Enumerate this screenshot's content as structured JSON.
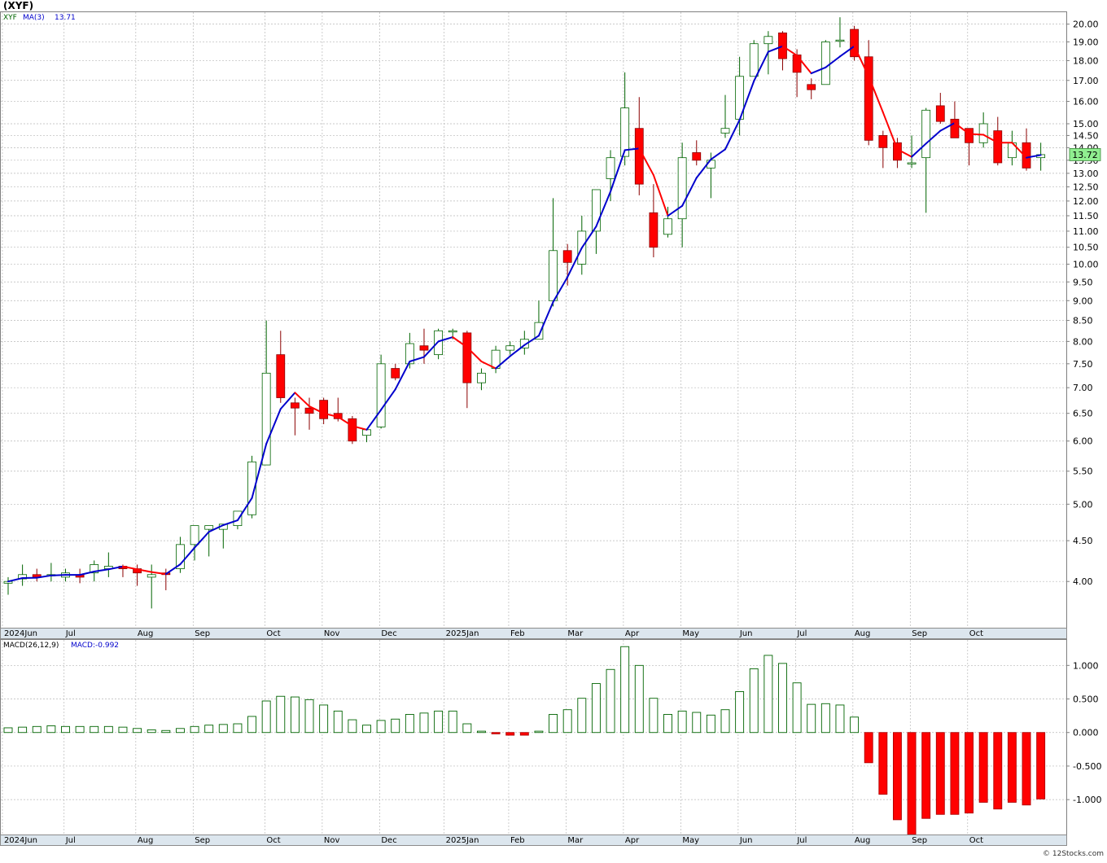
{
  "title": "(XYF)",
  "watermark": "© 12Stocks.com",
  "colors": {
    "up": "#ffffff",
    "up_border": "#006400",
    "down": "#ff0000",
    "down_border": "#8b0000",
    "ma_up": "#0000cc",
    "ma_down": "#ff0000",
    "hist_pos": "#006400",
    "hist_neg": "#ff0000",
    "price_label_bg": "#90ee90"
  },
  "chart_data": [
    {
      "type": "candlestick",
      "symbol": "XYF",
      "legend": {
        "symbol": "XYF",
        "ma_label": "MA(3)",
        "ma_value": "13.71"
      },
      "y_scale": "log",
      "ylim": [
        3.5,
        20.7
      ],
      "y_ticks": [
        "20.00",
        "19.00",
        "18.00",
        "17.00",
        "16.00",
        "15.00",
        "14.50",
        "14.00",
        "13.50",
        "13.00",
        "12.50",
        "12.00",
        "11.50",
        "11.00",
        "10.50",
        "10.00",
        "9.50",
        "9.00",
        "8.50",
        "8.00",
        "7.50",
        "7.00",
        "6.50",
        "6.00",
        "5.50",
        "5.00",
        "4.50",
        "4.00"
      ],
      "last_price": "13.72",
      "x_labels": [
        {
          "label": "2024Jun",
          "week": -0.4
        },
        {
          "label": "Jul",
          "week": 3.9
        },
        {
          "label": "Aug",
          "week": 8.9
        },
        {
          "label": "Sep",
          "week": 12.9
        },
        {
          "label": "Oct",
          "week": 17.9
        },
        {
          "label": "Nov",
          "week": 21.9
        },
        {
          "label": "Dec",
          "week": 25.9
        },
        {
          "label": "2025Jan",
          "week": 30.4
        },
        {
          "label": "Feb",
          "week": 34.9
        },
        {
          "label": "Mar",
          "week": 38.9
        },
        {
          "label": "Apr",
          "week": 42.9
        },
        {
          "label": "May",
          "week": 46.9
        },
        {
          "label": "Jun",
          "week": 50.9
        },
        {
          "label": "Jul",
          "week": 54.9
        },
        {
          "label": "Aug",
          "week": 58.9
        },
        {
          "label": "Sep",
          "week": 62.9
        },
        {
          "label": "Oct",
          "week": 66.9
        }
      ],
      "candles": [
        [
          3.98,
          4.05,
          3.85,
          4.0
        ],
        [
          4.03,
          4.2,
          3.95,
          4.08
        ],
        [
          4.08,
          4.15,
          4.0,
          4.05
        ],
        [
          4.08,
          4.22,
          4.0,
          4.08
        ],
        [
          4.05,
          4.15,
          4.0,
          4.1
        ],
        [
          4.08,
          4.15,
          3.98,
          4.05
        ],
        [
          4.1,
          4.25,
          4.0,
          4.2
        ],
        [
          4.15,
          4.35,
          4.05,
          4.18
        ],
        [
          4.18,
          4.2,
          4.05,
          4.15
        ],
        [
          4.15,
          4.2,
          3.95,
          4.1
        ],
        [
          4.05,
          4.2,
          3.7,
          4.08
        ],
        [
          4.1,
          4.15,
          3.9,
          4.08
        ],
        [
          4.15,
          4.55,
          4.1,
          4.45
        ],
        [
          4.45,
          4.7,
          4.25,
          4.7
        ],
        [
          4.65,
          4.7,
          4.3,
          4.7
        ],
        [
          4.65,
          4.7,
          4.4,
          4.72
        ],
        [
          4.7,
          4.9,
          4.65,
          4.9
        ],
        [
          4.85,
          5.75,
          4.8,
          5.65
        ],
        [
          5.6,
          8.5,
          5.6,
          7.3
        ],
        [
          7.7,
          8.25,
          6.7,
          6.8
        ],
        [
          6.7,
          6.8,
          6.1,
          6.6
        ],
        [
          6.6,
          6.8,
          6.2,
          6.5
        ],
        [
          6.75,
          6.8,
          6.3,
          6.4
        ],
        [
          6.5,
          6.8,
          6.35,
          6.4
        ],
        [
          6.4,
          6.45,
          5.95,
          6.0
        ],
        [
          6.1,
          6.2,
          5.98,
          6.2
        ],
        [
          6.25,
          7.7,
          6.22,
          7.5
        ],
        [
          7.4,
          7.5,
          7.15,
          7.2
        ],
        [
          7.5,
          8.2,
          7.4,
          7.95
        ],
        [
          7.9,
          8.3,
          7.5,
          7.8
        ],
        [
          7.7,
          8.3,
          7.6,
          8.25
        ],
        [
          8.25,
          8.3,
          8.05,
          8.25
        ],
        [
          8.2,
          8.25,
          6.6,
          7.1
        ],
        [
          7.1,
          7.4,
          6.95,
          7.3
        ],
        [
          7.4,
          7.9,
          7.3,
          7.8
        ],
        [
          7.8,
          8.0,
          7.7,
          7.9
        ],
        [
          7.85,
          8.25,
          7.7,
          8.05
        ],
        [
          8.05,
          9.0,
          8.05,
          8.45
        ],
        [
          9.0,
          12.1,
          8.85,
          10.4
        ],
        [
          10.4,
          10.6,
          9.4,
          10.05
        ],
        [
          10.0,
          11.5,
          9.7,
          11.0
        ],
        [
          11.0,
          12.4,
          10.3,
          12.4
        ],
        [
          12.8,
          13.9,
          12.0,
          13.6
        ],
        [
          13.65,
          17.4,
          13.3,
          15.7
        ],
        [
          14.8,
          16.2,
          12.2,
          12.6
        ],
        [
          11.6,
          12.6,
          10.2,
          10.5
        ],
        [
          10.9,
          11.8,
          10.8,
          11.4
        ],
        [
          11.4,
          14.2,
          10.5,
          13.6
        ],
        [
          13.8,
          14.3,
          13.3,
          13.5
        ],
        [
          13.2,
          13.8,
          12.1,
          13.5
        ],
        [
          14.6,
          16.3,
          14.4,
          14.8
        ],
        [
          15.2,
          18.2,
          14.5,
          17.2
        ],
        [
          17.2,
          19.1,
          17.2,
          18.9
        ],
        [
          18.9,
          19.6,
          17.3,
          19.3
        ],
        [
          19.5,
          19.6,
          17.5,
          18.1
        ],
        [
          18.3,
          18.6,
          16.2,
          17.4
        ],
        [
          16.8,
          17.1,
          16.1,
          16.55
        ],
        [
          16.8,
          19.1,
          16.8,
          19.0
        ],
        [
          19.1,
          20.4,
          18.7,
          19.1
        ],
        [
          19.7,
          19.9,
          18.0,
          18.2
        ],
        [
          18.2,
          19.1,
          14.1,
          14.3
        ],
        [
          14.5,
          14.7,
          13.2,
          14.0
        ],
        [
          14.2,
          14.4,
          13.2,
          13.5
        ],
        [
          13.4,
          14.5,
          13.2,
          13.4
        ],
        [
          13.6,
          15.7,
          11.6,
          15.6
        ],
        [
          15.8,
          16.4,
          15.0,
          15.1
        ],
        [
          15.2,
          16.0,
          14.4,
          14.4
        ],
        [
          14.8,
          14.8,
          13.3,
          14.2
        ],
        [
          14.2,
          15.5,
          14.0,
          15.0
        ],
        [
          14.7,
          15.3,
          13.3,
          13.4
        ],
        [
          13.6,
          14.7,
          13.3,
          14.2
        ],
        [
          14.2,
          14.8,
          13.1,
          13.2
        ],
        [
          13.6,
          14.2,
          13.1,
          13.72
        ]
      ]
    },
    {
      "type": "bar",
      "name": "MACD",
      "legend": {
        "label": "MACD(26,12,9)",
        "value_label": "MACD:-0.992"
      },
      "ylim": [
        -1.52,
        1.38
      ],
      "y_ticks": [
        "1.000",
        "0.500",
        "0.000",
        "-0.500",
        "-1.000"
      ],
      "values": [
        0.07,
        0.08,
        0.09,
        0.1,
        0.09,
        0.09,
        0.09,
        0.09,
        0.08,
        0.06,
        0.04,
        0.03,
        0.06,
        0.09,
        0.11,
        0.12,
        0.13,
        0.24,
        0.47,
        0.54,
        0.53,
        0.49,
        0.41,
        0.32,
        0.19,
        0.11,
        0.18,
        0.2,
        0.27,
        0.29,
        0.32,
        0.32,
        0.13,
        0.02,
        -0.02,
        -0.04,
        -0.04,
        0.02,
        0.27,
        0.34,
        0.51,
        0.73,
        0.94,
        1.28,
        1.0,
        0.51,
        0.27,
        0.32,
        0.3,
        0.26,
        0.34,
        0.61,
        0.95,
        1.15,
        1.03,
        0.74,
        0.42,
        0.43,
        0.41,
        0.23,
        -0.45,
        -0.92,
        -1.3,
        -1.52,
        -1.28,
        -1.22,
        -1.22,
        -1.2,
        -1.04,
        -1.14,
        -1.04,
        -1.08,
        -0.99
      ]
    }
  ]
}
